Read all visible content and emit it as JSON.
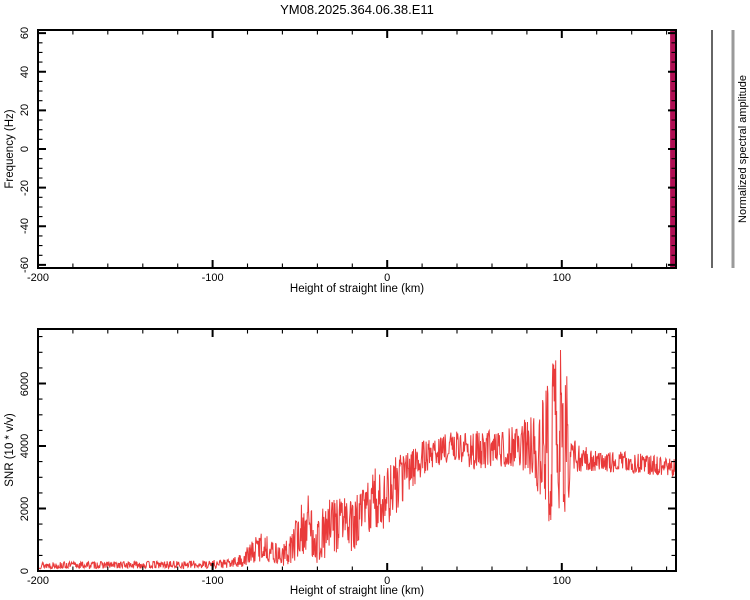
{
  "title": "YM08.2025.364.06.38.E11",
  "axis_labels": {
    "top_y": "Frequency (Hz)",
    "top_x": "Height of straight line (km)",
    "bottom_y": "SNR (10 * v/v)",
    "bottom_x": "Height of straight line (km)",
    "colorbar": "Normalized spectral amplitude"
  },
  "colors": {
    "curve": "#e93a3a",
    "stripe": "#b00d52",
    "frame": "#000000",
    "colorbar_line_black": "#000000",
    "colorbar_line_gray": "#9a9a9a",
    "background": "#ffffff"
  },
  "chart_data": [
    {
      "type": "heatmap",
      "title": "YM08.2025.364.06.38.E11",
      "xlabel": "Height of straight line (km)",
      "ylabel": "Frequency (Hz)",
      "xlim": [
        -200,
        165.4
      ],
      "ylim": [
        -61.6,
        61.6
      ],
      "x_ticks": [
        -200,
        -100,
        0,
        100
      ],
      "x_minor_step": 20,
      "y_ticks": [
        -60,
        -40,
        -20,
        0,
        20,
        40,
        60
      ],
      "y_minor_step": 5,
      "grid": false,
      "colorbar_label": "Normalized spectral amplitude",
      "note": "panel is empty (white) except one filled spectral column at the right edge",
      "data_columns": [
        {
          "x_range_km": [
            162,
            165
          ],
          "freq_range_hz": [
            -61.6,
            61.6
          ],
          "color": "#b00d52"
        }
      ]
    },
    {
      "type": "line",
      "xlabel": "Height of straight line (km)",
      "ylabel": "SNR (10 * v/v)",
      "xlim": [
        -200,
        165.4
      ],
      "ylim": [
        0,
        7744
      ],
      "x_ticks": [
        -200,
        -100,
        0,
        100
      ],
      "x_minor_step": 20,
      "y_ticks": [
        0,
        2000,
        4000,
        6000
      ],
      "y_minor_step": 500,
      "grid": false,
      "legend": null,
      "series_color": "#e93a3a",
      "samples_per_km": 3.6,
      "seed": 13,
      "spike_exponent": 0.8,
      "envelope_km_mean_amp": [
        [
          -200,
          180,
          110
        ],
        [
          -150,
          195,
          115
        ],
        [
          -110,
          205,
          125
        ],
        [
          -90,
          235,
          150
        ],
        [
          -84,
          320,
          220
        ],
        [
          -78,
          560,
          360
        ],
        [
          -72,
          820,
          500
        ],
        [
          -66,
          620,
          360
        ],
        [
          -60,
          470,
          320
        ],
        [
          -55,
          720,
          520
        ],
        [
          -50,
          1250,
          850
        ],
        [
          -45,
          1500,
          1000
        ],
        [
          -40,
          950,
          720
        ],
        [
          -35,
          1300,
          900
        ],
        [
          -30,
          1500,
          1000
        ],
        [
          -25,
          1700,
          950
        ],
        [
          -20,
          1350,
          820
        ],
        [
          -15,
          1750,
          900
        ],
        [
          -10,
          2100,
          1000
        ],
        [
          -5,
          2300,
          1100
        ],
        [
          0,
          2450,
          1000
        ],
        [
          5,
          2700,
          950
        ],
        [
          10,
          3100,
          800
        ],
        [
          15,
          3400,
          680
        ],
        [
          20,
          3600,
          560
        ],
        [
          25,
          3750,
          500
        ],
        [
          30,
          3850,
          470
        ],
        [
          35,
          3950,
          460
        ],
        [
          40,
          4000,
          500
        ],
        [
          45,
          3920,
          560
        ],
        [
          50,
          3860,
          620
        ],
        [
          55,
          3720,
          820
        ],
        [
          60,
          3950,
          520
        ],
        [
          65,
          3900,
          560
        ],
        [
          70,
          3960,
          660
        ],
        [
          75,
          4100,
          720
        ],
        [
          80,
          3900,
          950
        ],
        [
          85,
          4000,
          1150
        ],
        [
          88,
          3720,
          1650
        ],
        [
          92,
          3900,
          2250
        ],
        [
          96,
          4100,
          2850
        ],
        [
          99,
          4300,
          3400
        ],
        [
          101,
          4200,
          3480
        ],
        [
          103,
          3900,
          2300
        ],
        [
          105,
          3650,
          700
        ],
        [
          110,
          3600,
          420
        ],
        [
          120,
          3550,
          360
        ],
        [
          135,
          3480,
          340
        ],
        [
          150,
          3400,
          320
        ],
        [
          160,
          3340,
          310
        ],
        [
          165.4,
          3290,
          300
        ]
      ]
    }
  ]
}
